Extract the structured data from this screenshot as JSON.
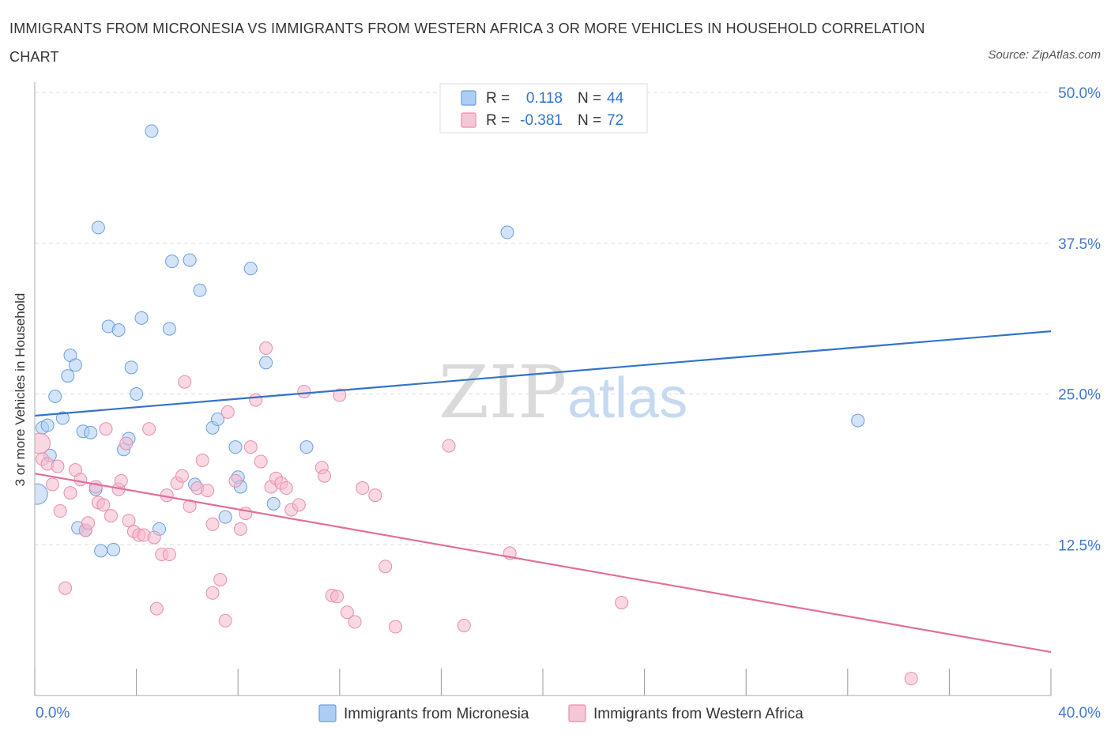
{
  "title": "IMMIGRANTS FROM MICRONESIA VS IMMIGRANTS FROM WESTERN AFRICA 3 OR MORE VEHICLES IN HOUSEHOLD CORRELATION CHART",
  "source": "Source: ZipAtlas.com",
  "watermark": {
    "zip": "ZIP",
    "atlas": "atlas"
  },
  "colors": {
    "blue": "#3373c7",
    "blue_fill": "#aecdf2",
    "pink": "#e0709a",
    "pink_fill": "#f5b8cc",
    "grid": "#dddddd",
    "axis_text": "#4577c8"
  },
  "legend_top": {
    "rows": [
      {
        "r_label": "R =",
        "r_value": "0.118",
        "n_label": "N =",
        "n_value": "44"
      },
      {
        "r_label": "R =",
        "r_value": "-0.381",
        "n_label": "N =",
        "n_value": "72"
      }
    ]
  },
  "chart_data": {
    "type": "scatter",
    "title": "IMMIGRANTS FROM MICRONESIA VS IMMIGRANTS FROM WESTERN AFRICA 3 OR MORE VEHICLES IN HOUSEHOLD CORRELATION CHART",
    "xlabel": "",
    "ylabel": "3 or more Vehicles in Household",
    "xlim": [
      0,
      40
    ],
    "ylim": [
      0,
      50
    ],
    "x_tick_labels": [
      "0.0%",
      "40.0%"
    ],
    "y_ticks": [
      12.5,
      25.0,
      37.5,
      50.0
    ],
    "y_tick_labels": [
      "12.5%",
      "25.0%",
      "37.5%",
      "50.0%"
    ],
    "series": [
      {
        "name": "Immigrants from Micronesia",
        "color": "blue",
        "trend": {
          "x": [
            0,
            40
          ],
          "y": [
            23.2,
            30.2
          ]
        },
        "points": [
          [
            0.1,
            16.7,
            2
          ],
          [
            0.3,
            22.2,
            1
          ],
          [
            0.5,
            22.4,
            1
          ],
          [
            0.6,
            19.9,
            1
          ],
          [
            0.8,
            24.8,
            1
          ],
          [
            1.1,
            23.0,
            1
          ],
          [
            1.3,
            26.5,
            1
          ],
          [
            1.4,
            28.2,
            1
          ],
          [
            1.6,
            27.4,
            1
          ],
          [
            1.7,
            13.9,
            1
          ],
          [
            1.9,
            21.9,
            1
          ],
          [
            2.0,
            13.7,
            1
          ],
          [
            2.2,
            21.8,
            1
          ],
          [
            2.4,
            17.1,
            1
          ],
          [
            2.5,
            38.8,
            1
          ],
          [
            2.6,
            12.0,
            1
          ],
          [
            2.9,
            30.6,
            1
          ],
          [
            3.1,
            12.1,
            1
          ],
          [
            3.3,
            30.3,
            1
          ],
          [
            3.5,
            20.4,
            1
          ],
          [
            3.7,
            21.3,
            1
          ],
          [
            3.8,
            27.2,
            1
          ],
          [
            4.0,
            25.0,
            1
          ],
          [
            4.2,
            31.3,
            1
          ],
          [
            4.6,
            46.8,
            1
          ],
          [
            4.9,
            13.8,
            1
          ],
          [
            5.3,
            30.4,
            1
          ],
          [
            5.4,
            36.0,
            1
          ],
          [
            6.1,
            36.1,
            1
          ],
          [
            6.3,
            17.5,
            1
          ],
          [
            6.5,
            33.6,
            1
          ],
          [
            7.0,
            22.2,
            1
          ],
          [
            7.2,
            22.9,
            1
          ],
          [
            7.5,
            14.8,
            1
          ],
          [
            7.9,
            20.6,
            1
          ],
          [
            8.0,
            18.1,
            1
          ],
          [
            8.1,
            17.3,
            1
          ],
          [
            8.5,
            35.4,
            1
          ],
          [
            9.1,
            27.6,
            1
          ],
          [
            9.4,
            15.9,
            1
          ],
          [
            10.7,
            20.6,
            1
          ],
          [
            18.6,
            38.4,
            1
          ],
          [
            32.4,
            22.8,
            1
          ]
        ]
      },
      {
        "name": "Immigrants from Western Africa",
        "color": "pink",
        "trend": {
          "x": [
            0,
            40
          ],
          "y": [
            18.4,
            3.6
          ]
        },
        "points": [
          [
            0.2,
            20.9,
            2
          ],
          [
            0.3,
            19.6,
            1
          ],
          [
            0.5,
            19.2,
            1
          ],
          [
            0.7,
            17.5,
            1
          ],
          [
            0.9,
            19.0,
            1
          ],
          [
            1.0,
            15.3,
            1
          ],
          [
            1.2,
            8.9,
            1
          ],
          [
            1.4,
            16.8,
            1
          ],
          [
            1.6,
            18.7,
            1
          ],
          [
            1.8,
            17.9,
            1
          ],
          [
            2.0,
            13.7,
            1
          ],
          [
            2.1,
            14.3,
            1
          ],
          [
            2.4,
            17.3,
            1
          ],
          [
            2.5,
            16.0,
            1
          ],
          [
            2.7,
            15.8,
            1
          ],
          [
            2.8,
            22.1,
            1
          ],
          [
            3.0,
            14.9,
            1
          ],
          [
            3.3,
            17.1,
            1
          ],
          [
            3.4,
            17.8,
            1
          ],
          [
            3.6,
            20.9,
            1
          ],
          [
            3.7,
            14.5,
            1
          ],
          [
            3.9,
            13.6,
            1
          ],
          [
            4.1,
            13.3,
            1
          ],
          [
            4.3,
            13.3,
            1
          ],
          [
            4.5,
            22.1,
            1
          ],
          [
            4.7,
            13.1,
            1
          ],
          [
            4.8,
            7.2,
            1
          ],
          [
            5.0,
            11.7,
            1
          ],
          [
            5.2,
            16.6,
            1
          ],
          [
            5.3,
            11.7,
            1
          ],
          [
            5.6,
            17.6,
            1
          ],
          [
            5.8,
            18.2,
            1
          ],
          [
            5.9,
            26.0,
            1
          ],
          [
            6.1,
            15.7,
            1
          ],
          [
            6.4,
            17.2,
            1
          ],
          [
            6.6,
            19.5,
            1
          ],
          [
            6.8,
            17.0,
            1
          ],
          [
            7.0,
            14.2,
            1
          ],
          [
            7.0,
            8.5,
            1
          ],
          [
            7.3,
            9.6,
            1
          ],
          [
            7.5,
            6.2,
            1
          ],
          [
            7.6,
            23.5,
            1
          ],
          [
            7.9,
            17.8,
            1
          ],
          [
            8.1,
            13.8,
            1
          ],
          [
            8.3,
            15.1,
            1
          ],
          [
            8.5,
            20.6,
            1
          ],
          [
            8.7,
            24.5,
            1
          ],
          [
            8.9,
            19.4,
            1
          ],
          [
            9.1,
            28.8,
            1
          ],
          [
            9.3,
            17.3,
            1
          ],
          [
            9.5,
            18.0,
            1
          ],
          [
            9.7,
            17.6,
            1
          ],
          [
            9.9,
            17.2,
            1
          ],
          [
            10.1,
            15.4,
            1
          ],
          [
            10.4,
            15.8,
            1
          ],
          [
            10.6,
            25.2,
            1
          ],
          [
            11.3,
            18.9,
            1
          ],
          [
            11.4,
            18.2,
            1
          ],
          [
            11.7,
            8.3,
            1
          ],
          [
            11.9,
            8.2,
            1
          ],
          [
            12.0,
            24.9,
            1
          ],
          [
            12.3,
            6.9,
            1
          ],
          [
            12.6,
            6.1,
            1
          ],
          [
            12.9,
            17.2,
            1
          ],
          [
            13.4,
            16.6,
            1
          ],
          [
            13.8,
            10.7,
            1
          ],
          [
            14.2,
            5.7,
            1
          ],
          [
            16.3,
            20.7,
            1
          ],
          [
            16.9,
            5.8,
            1
          ],
          [
            18.7,
            11.8,
            1
          ],
          [
            23.1,
            7.7,
            1
          ],
          [
            34.5,
            1.4,
            1
          ]
        ]
      }
    ],
    "legend": [
      "Immigrants from Micronesia",
      "Immigrants from Western Africa"
    ]
  }
}
